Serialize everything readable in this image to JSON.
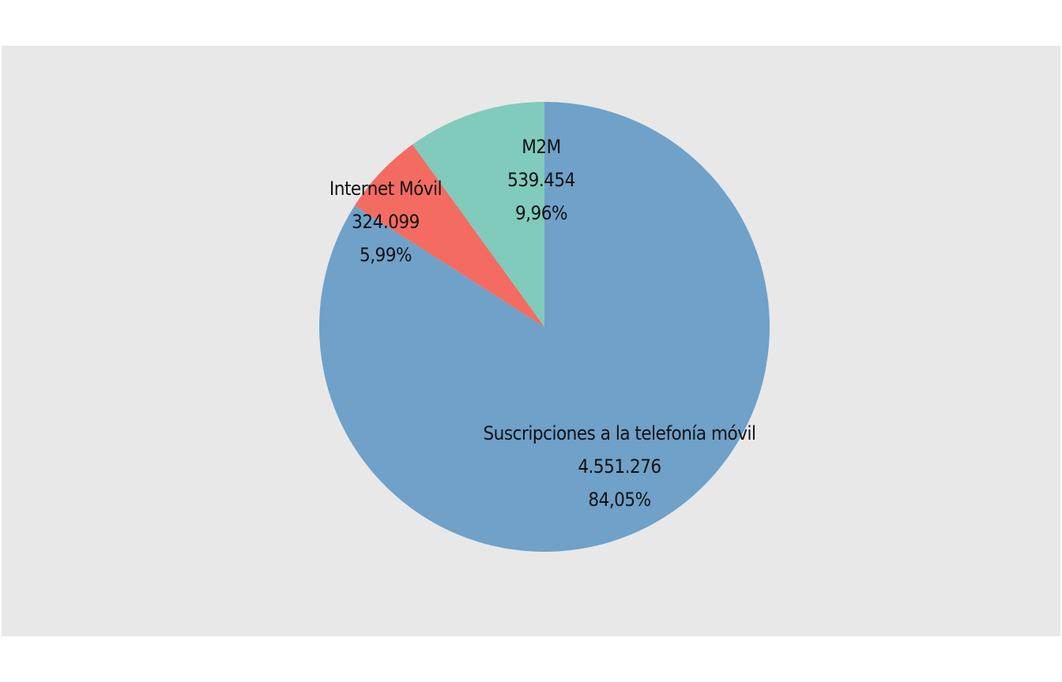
{
  "chart_data": {
    "type": "pie",
    "title": "",
    "start_angle_deg": 0,
    "direction": "clockwise",
    "slices": [
      {
        "name": "Suscripciones a la telefonía móvil",
        "value_label": "4.551.276",
        "percent_label": "84,05%",
        "value": 4551276,
        "percent": 84.05,
        "color": "#6fa1c9"
      },
      {
        "name": "Internet Móvil",
        "value_label": "324.099",
        "percent_label": "5,99%",
        "value": 324099,
        "percent": 5.99,
        "color": "#f46b61"
      },
      {
        "name": "M2M",
        "value_label": "539.454",
        "percent_label": "9,96%",
        "value": 539454,
        "percent": 9.96,
        "color": "#80cbbb"
      }
    ]
  }
}
